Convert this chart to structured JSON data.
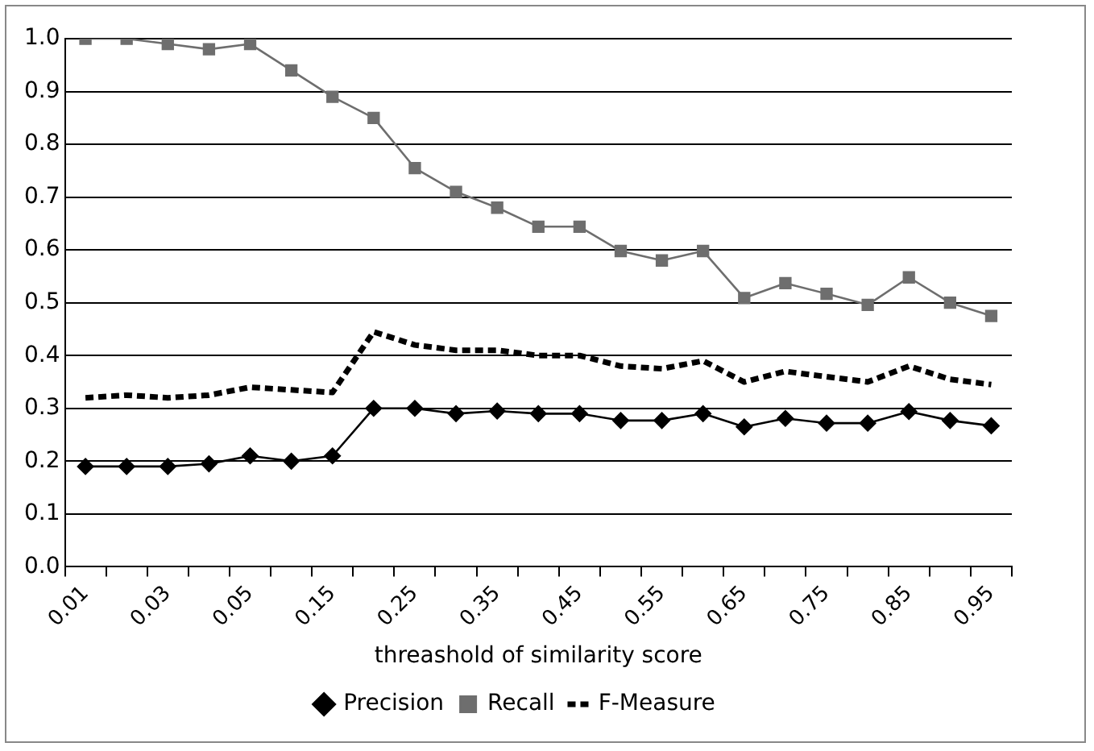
{
  "chart_data": {
    "type": "line",
    "xlabel": "threashold of similarity score",
    "categories": [
      "0.01",
      null,
      "0.03",
      null,
      "0.05",
      null,
      "0.15",
      null,
      "0.25",
      null,
      "0.35",
      null,
      "0.45",
      null,
      "0.55",
      null,
      "0.65",
      null,
      "0.75",
      null,
      "0.85",
      null,
      "0.95"
    ],
    "ylim": [
      0,
      1
    ],
    "yticks": [
      {
        "value": 0,
        "label": "0.0"
      },
      0.1,
      0.2,
      0.3,
      0.4,
      0.5,
      0.6,
      0.7,
      0.8,
      0.9,
      {
        "value": 1,
        "label": "1.0"
      }
    ],
    "grid": "y",
    "legend": "bottom",
    "series": [
      {
        "name": "Precision",
        "color": "#000000",
        "marker": "diamond",
        "line_style": "solid",
        "values": [
          0.19,
          0.19,
          0.19,
          0.195,
          0.21,
          0.2,
          0.21,
          0.3,
          0.3,
          0.29,
          0.295,
          0.29,
          0.29,
          0.277,
          0.277,
          0.29,
          0.265,
          0.281,
          0.272,
          0.272,
          0.294,
          0.277,
          0.267
        ]
      },
      {
        "name": "Recall",
        "color": "#6e6e6e",
        "marker": "square",
        "line_style": "solid",
        "values": [
          1.0,
          1.0,
          0.99,
          0.98,
          0.99,
          0.94,
          0.89,
          0.85,
          0.755,
          0.71,
          0.68,
          0.644,
          0.644,
          0.598,
          0.58,
          0.598,
          0.509,
          0.537,
          0.517,
          0.496,
          0.548,
          0.5,
          0.475
        ]
      },
      {
        "name": "F-Measure",
        "color": "#000000",
        "marker": "none",
        "line_style": "dashed",
        "values": [
          0.32,
          0.325,
          0.32,
          0.325,
          0.34,
          0.335,
          0.33,
          0.445,
          0.42,
          0.41,
          0.41,
          0.4,
          0.4,
          0.38,
          0.375,
          0.39,
          0.35,
          0.37,
          0.36,
          0.35,
          0.38,
          0.355,
          0.345
        ]
      }
    ]
  }
}
